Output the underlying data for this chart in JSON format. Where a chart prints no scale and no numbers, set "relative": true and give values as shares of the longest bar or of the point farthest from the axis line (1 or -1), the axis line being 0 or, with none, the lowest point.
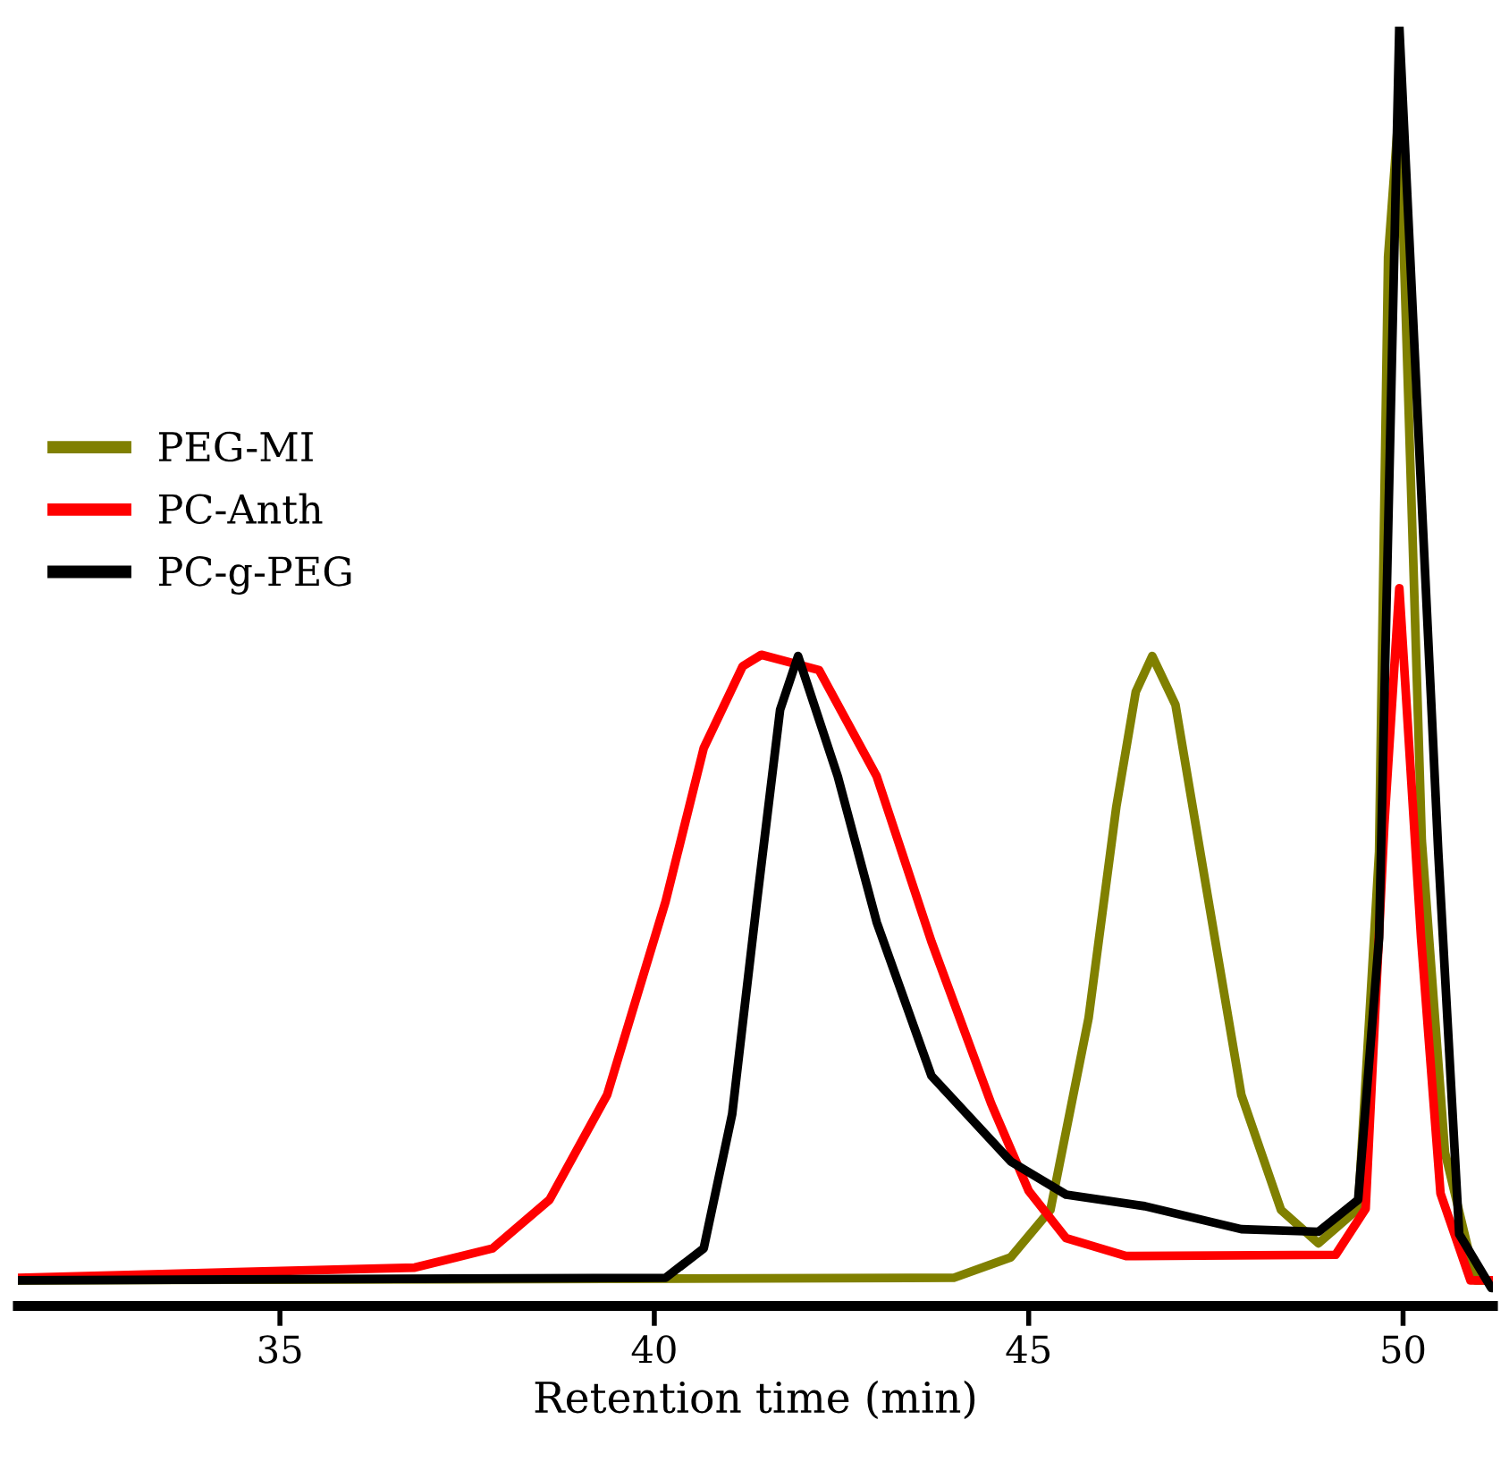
{
  "chart_data": {
    "type": "line",
    "relative": true,
    "xlabel": "Retention time (min)",
    "xlim": [
      31.5,
      51.2
    ],
    "xticks": [
      35,
      40,
      45,
      50
    ],
    "legend": "left",
    "grid": false,
    "marker": "none",
    "line_style": "solid",
    "series": [
      {
        "name": "PEG-MI",
        "color": "#808000",
        "x": [
          31.5,
          44.0,
          44.76,
          45.29,
          45.8,
          46.17,
          46.43,
          46.65,
          46.96,
          47.34,
          47.84,
          48.37,
          48.87,
          49.4,
          49.68,
          49.8,
          49.95,
          50.25,
          50.56,
          50.97,
          51.2
        ],
        "values": [
          0.02,
          0.022,
          0.038,
          0.075,
          0.225,
          0.39,
          0.48,
          0.508,
          0.47,
          0.338,
          0.165,
          0.075,
          0.049,
          0.076,
          0.355,
          0.82,
          0.94,
          0.364,
          0.12,
          0.02,
          0.02
        ]
      },
      {
        "name": "PC-Anth",
        "color": "#ff0000",
        "x": [
          31.5,
          36.8,
          37.84,
          38.6,
          39.37,
          40.15,
          40.66,
          41.18,
          41.43,
          42.2,
          42.97,
          43.7,
          44.5,
          45.0,
          45.5,
          46.3,
          49.1,
          49.5,
          49.75,
          49.95,
          50.24,
          50.5,
          50.9,
          51.2
        ],
        "values": [
          0.022,
          0.03,
          0.045,
          0.083,
          0.165,
          0.316,
          0.436,
          0.5,
          0.509,
          0.497,
          0.414,
          0.285,
          0.158,
          0.09,
          0.053,
          0.039,
          0.04,
          0.076,
          0.376,
          0.561,
          0.288,
          0.088,
          0.02,
          0.02
        ]
      },
      {
        "name": "PC-g-PEG",
        "color": "#000000",
        "x": [
          31.5,
          40.15,
          40.66,
          41.04,
          41.37,
          41.68,
          41.92,
          42.45,
          42.97,
          43.7,
          44.76,
          45.5,
          46.55,
          47.84,
          48.87,
          49.4,
          49.68,
          49.95,
          50.47,
          50.75,
          51.18,
          51.2
        ],
        "values": [
          0.02,
          0.022,
          0.045,
          0.15,
          0.316,
          0.466,
          0.508,
          0.414,
          0.3,
          0.18,
          0.113,
          0.087,
          0.078,
          0.06,
          0.058,
          0.083,
          0.288,
          1.0,
          0.355,
          0.056,
          0.014,
          0.014
        ]
      }
    ]
  }
}
